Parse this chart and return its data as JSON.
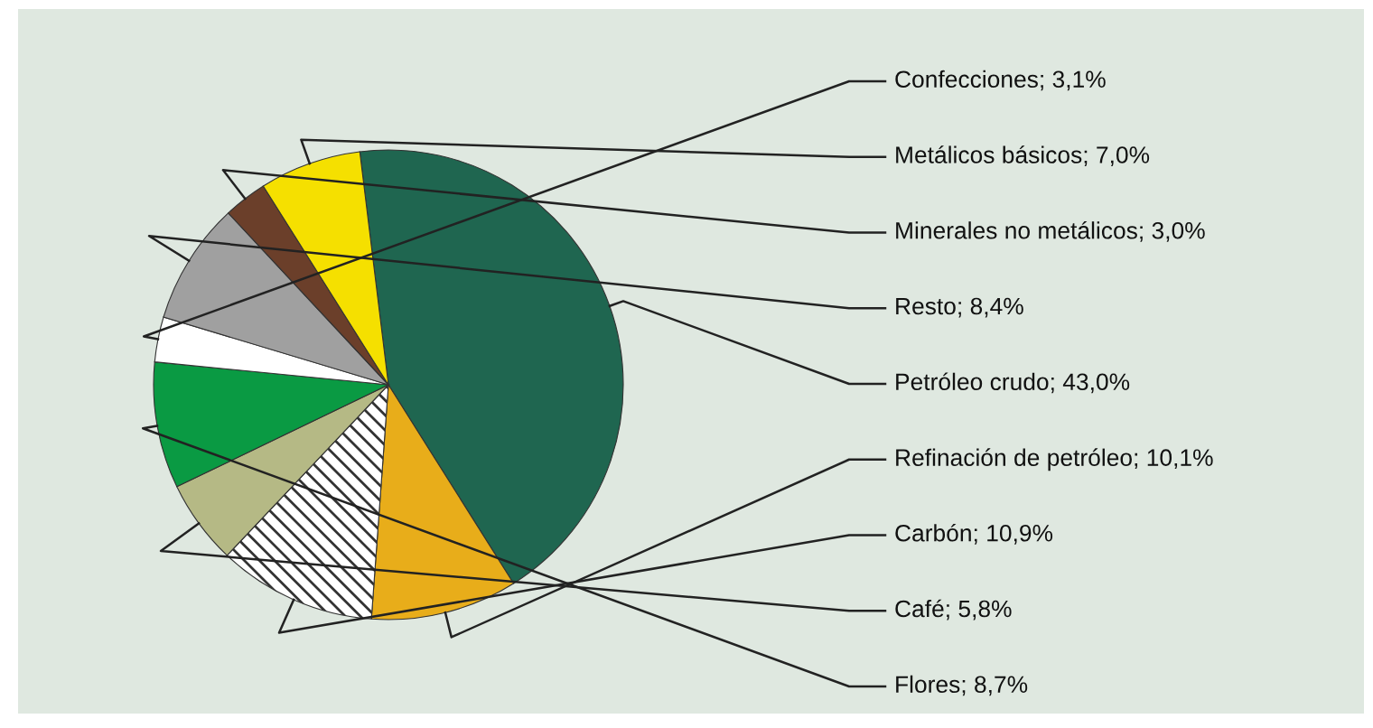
{
  "chart_data": {
    "type": "pie",
    "categories": [
      "Confecciones",
      "Metálicos básicos",
      "Minerales no metálicos",
      "Resto",
      "Petróleo crudo",
      "Refinación de petróleo",
      "Carbón",
      "Café",
      "Flores"
    ],
    "values": [
      3.1,
      7.0,
      3.0,
      8.4,
      43.0,
      10.1,
      10.9,
      5.8,
      8.7
    ],
    "value_labels": [
      "3,1%",
      "7,0%",
      "3,0%",
      "8,4%",
      "43,0%",
      "10,1%",
      "10,9%",
      "5,8%",
      "8,7%"
    ],
    "colors": [
      "#ffffff",
      "#f5e000",
      "#6b3f2a",
      "#a0a0a0",
      "#1f6650",
      "#e8ad1a",
      "#ffffff",
      "#b5b985",
      "#0a9a43"
    ],
    "legend": false
  }
}
